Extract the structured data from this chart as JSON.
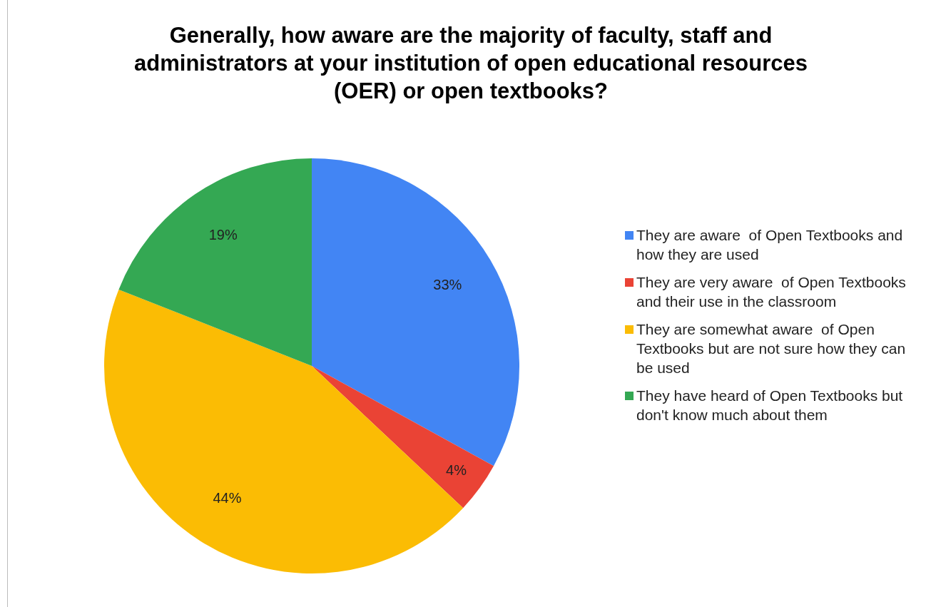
{
  "chart_data": {
    "type": "pie",
    "title": "Generally, how aware are the majority of faculty, staff and administrators at your institution of open educational resources (OER) or open textbooks?",
    "categories": [
      "They are aware  of Open Textbooks and how they are used",
      "They are very aware  of Open Textbooks and their use in the classroom",
      "They are somewhat aware  of Open Textbooks but are not sure how they can be used",
      "They have heard of Open Textbooks but don't know much about them"
    ],
    "values": [
      33,
      4,
      44,
      19
    ],
    "colors": [
      "#4285f4",
      "#ea4335",
      "#fbbc04",
      "#34a853"
    ],
    "value_labels": [
      "33%",
      "4%",
      "44%",
      "19%"
    ],
    "legend": "right"
  }
}
